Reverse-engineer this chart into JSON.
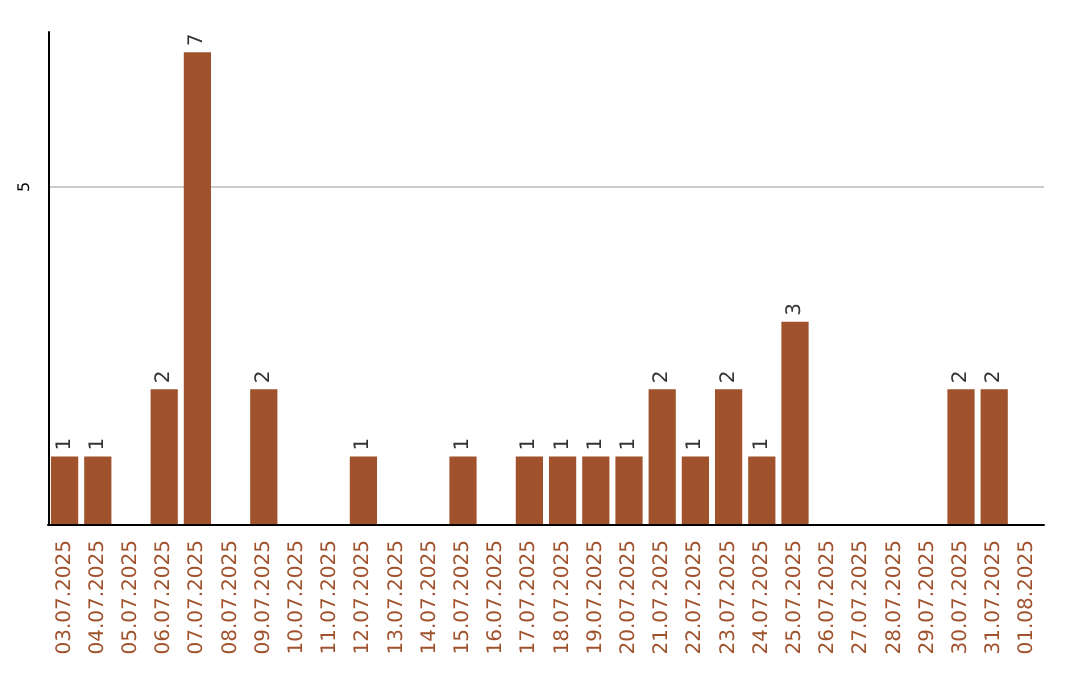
{
  "chart_data": {
    "type": "bar",
    "categories": [
      "03.07.2025",
      "04.07.2025",
      "05.07.2025",
      "06.07.2025",
      "07.07.2025",
      "08.07.2025",
      "09.07.2025",
      "10.07.2025",
      "11.07.2025",
      "12.07.2025",
      "13.07.2025",
      "14.07.2025",
      "15.07.2025",
      "16.07.2025",
      "17.07.2025",
      "18.07.2025",
      "19.07.2025",
      "20.07.2025",
      "21.07.2025",
      "22.07.2025",
      "23.07.2025",
      "24.07.2025",
      "25.07.2025",
      "26.07.2025",
      "27.07.2025",
      "28.07.2025",
      "29.07.2025",
      "30.07.2025",
      "31.07.2025",
      "01.08.2025"
    ],
    "values": [
      1,
      1,
      0,
      2,
      7,
      0,
      2,
      0,
      0,
      1,
      0,
      0,
      1,
      0,
      1,
      1,
      1,
      1,
      2,
      1,
      2,
      1,
      3,
      0,
      0,
      0,
      0,
      2,
      2,
      0
    ],
    "value_labels": [
      "1",
      "1",
      null,
      "2",
      "7",
      null,
      "2",
      null,
      null,
      "1",
      null,
      null,
      "1",
      null,
      "1",
      "1",
      "1",
      "1",
      "2",
      "1",
      "2",
      "1",
      "3",
      null,
      null,
      null,
      null,
      "2",
      "2",
      null
    ],
    "color": "#a0522d",
    "ylim": [
      0,
      7.3
    ],
    "yticks": [
      5
    ],
    "grid": "y"
  }
}
